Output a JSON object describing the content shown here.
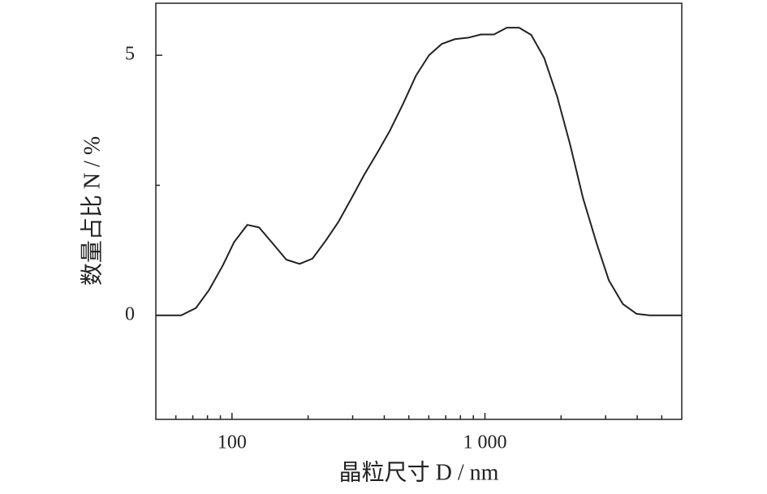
{
  "chart_data": {
    "type": "line",
    "x_label": "晶粒尺寸 D / nm",
    "y_label": "数量占比 N / %",
    "x_scale": "log",
    "color": "#222222",
    "x": [
      50,
      63,
      72,
      81,
      92,
      102,
      115,
      128,
      145,
      164,
      185,
      208,
      235,
      263,
      296,
      333,
      378,
      422,
      475,
      534,
      601,
      676,
      761,
      863,
      964,
      1085,
      1221,
      1365,
      1525,
      1714,
      1929,
      2172,
      2443,
      2770,
      3091,
      3506,
      3972,
      4477,
      6000
    ],
    "values": [
      0,
      0,
      0.14,
      0.48,
      0.96,
      1.41,
      1.74,
      1.69,
      1.38,
      1.07,
      0.99,
      1.09,
      1.44,
      1.79,
      2.24,
      2.7,
      3.15,
      3.56,
      4.07,
      4.61,
      5.0,
      5.22,
      5.31,
      5.34,
      5.4,
      5.4,
      5.53,
      5.53,
      5.39,
      4.95,
      4.21,
      3.28,
      2.25,
      1.37,
      0.67,
      0.22,
      0.03,
      0,
      0
    ],
    "xlim": [
      50,
      6000
    ],
    "xticks": [
      100,
      {
        "value": 1000,
        "label": "1 000"
      }
    ],
    "x_minor_ticks": [
      60,
      70,
      80,
      90,
      200,
      300,
      400,
      500,
      600,
      700,
      800,
      900,
      2000,
      3000,
      4000,
      5000
    ],
    "ylim": [
      -2,
      6
    ],
    "yticks": [
      0,
      5
    ],
    "y_minor_ticks": [
      2.5
    ]
  }
}
